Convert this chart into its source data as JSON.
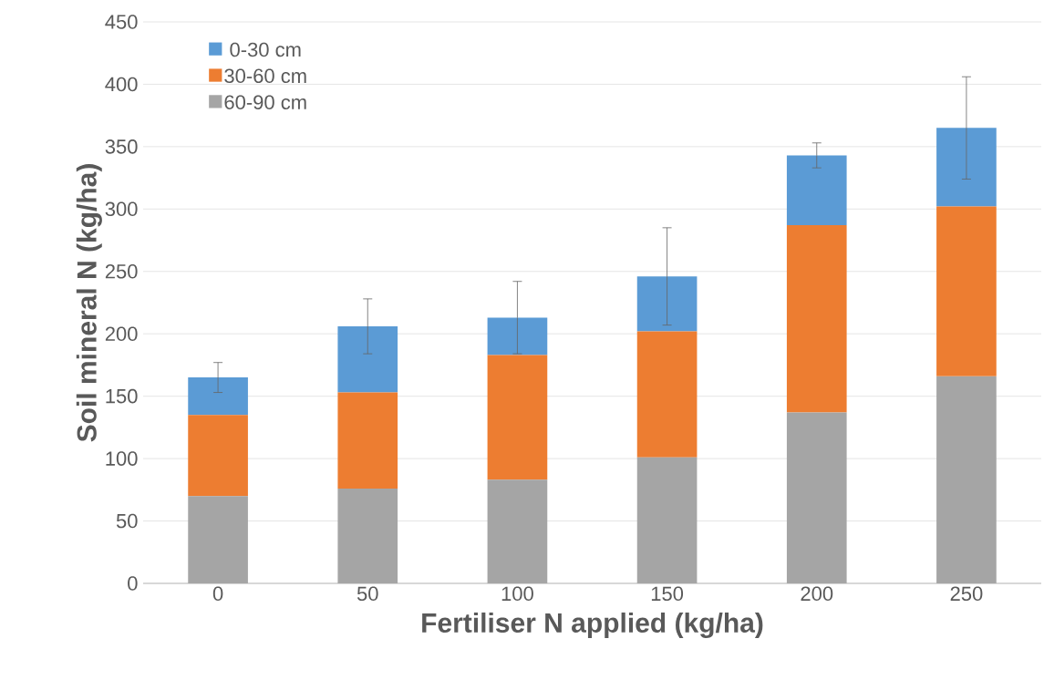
{
  "chart_data": {
    "type": "bar",
    "stacked": true,
    "xlabel": "Fertiliser N applied (kg/ha)",
    "ylabel": "Soil mineral N (kg/ha)",
    "categories": [
      "0",
      "50",
      "100",
      "150",
      "200",
      "250"
    ],
    "series": [
      {
        "name": "60-90 cm",
        "color": "#a5a5a5",
        "values": [
          70,
          76,
          83,
          101,
          137,
          166
        ]
      },
      {
        "name": "30-60 cm",
        "color": "#ed7d31",
        "values": [
          65,
          77,
          100,
          101,
          150,
          136
        ]
      },
      {
        "name": "0-30 cm",
        "color": "#5b9bd5",
        "values": [
          30,
          53,
          30,
          44,
          56,
          63
        ],
        "errors": [
          12,
          22,
          29,
          39,
          10,
          41
        ]
      }
    ],
    "ylim": [
      0,
      450
    ],
    "yticks": [
      0,
      50,
      100,
      150,
      200,
      250,
      300,
      350,
      400,
      450
    ],
    "grid": "y",
    "legend": "top left"
  }
}
